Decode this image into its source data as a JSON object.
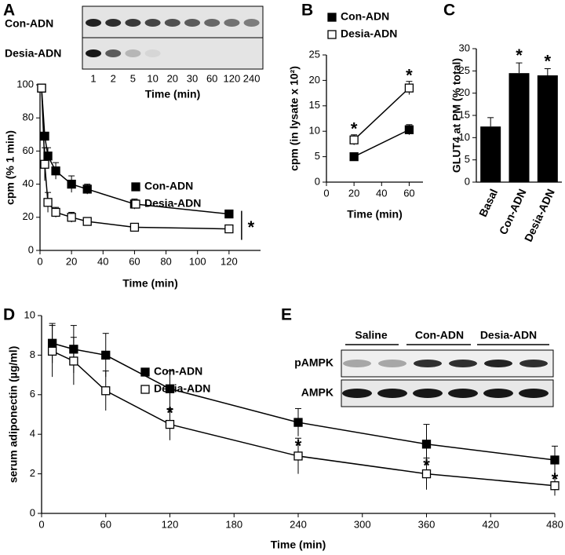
{
  "panels": [
    "A",
    "B",
    "C",
    "D",
    "E"
  ],
  "blot_a": {
    "rows": [
      "Con-ADN",
      "Desia-ADN"
    ],
    "lanes": [
      1,
      2,
      5,
      10,
      20,
      30,
      60,
      120,
      240
    ],
    "xlabel": "Time (min)"
  },
  "blot_e": {
    "groups": [
      "Saline",
      "Con-ADN",
      "Desia-ADN"
    ],
    "rows": [
      "pAMPK",
      "AMPK"
    ]
  },
  "chart_data": [
    {
      "type": "line",
      "xlabel": "Time (min)",
      "ylabel": "cpm (% 1 min)",
      "x": [
        1,
        3,
        5,
        10,
        20,
        30,
        60,
        120
      ],
      "series": [
        {
          "name": "Con-ADN",
          "color": "#000000",
          "marker_fill": "#000000",
          "values": [
            98,
            69,
            57,
            48,
            40,
            37,
            28,
            22
          ],
          "errors": [
            0,
            0,
            5,
            5,
            5,
            3,
            3,
            2
          ]
        },
        {
          "name": "Desia-ADN",
          "color": "#000000",
          "marker_fill": "#ffffff",
          "values": [
            98,
            52,
            29,
            23,
            20,
            17.5,
            14,
            13
          ],
          "errors": [
            0,
            10,
            6,
            3,
            3,
            2,
            1,
            1
          ]
        }
      ],
      "significance_label": "*",
      "significant": [
        false,
        false,
        false,
        false,
        false,
        false,
        false,
        true
      ],
      "xlim": [
        0,
        140
      ],
      "xticks": [
        0,
        20,
        40,
        60,
        80,
        100,
        120
      ],
      "ylim": [
        0,
        100
      ],
      "yticks": [
        0,
        20,
        40,
        60,
        80,
        100
      ]
    },
    {
      "type": "line",
      "xlabel": "Time (min)",
      "ylabel": "cpm (in lysate x 10²)",
      "x": [
        20,
        60
      ],
      "series": [
        {
          "name": "Con-ADN",
          "color": "#000000",
          "marker_fill": "#000000",
          "values": [
            5,
            10.3
          ],
          "errors": [
            0.7,
            1
          ]
        },
        {
          "name": "Desia-ADN",
          "color": "#000000",
          "marker_fill": "#ffffff",
          "values": [
            8.3,
            18.5
          ],
          "errors": [
            1,
            1.3
          ]
        }
      ],
      "significance_label": "*",
      "significant": [
        true,
        true
      ],
      "xlim": [
        0,
        70
      ],
      "xticks": [
        0,
        20,
        40,
        60
      ],
      "ylim": [
        0,
        25
      ],
      "yticks": [
        0,
        5,
        10,
        15,
        20,
        25
      ]
    },
    {
      "type": "bar",
      "ylabel": "GLUT4 at PM (% total)",
      "categories": [
        "Basal",
        "Con-ADN",
        "Desia-ADN"
      ],
      "values": [
        12.5,
        24.5,
        24
      ],
      "errors": [
        2,
        2.3,
        1.5
      ],
      "color": "#000000",
      "significance_label": "*",
      "significant": [
        false,
        true,
        true
      ],
      "ylim": [
        0,
        30
      ],
      "yticks": [
        0,
        5,
        10,
        15,
        20,
        25,
        30
      ]
    },
    {
      "type": "line",
      "xlabel": "Time (min)",
      "ylabel": "serum adiponectin (µg/ml)",
      "x": [
        10,
        30,
        60,
        120,
        240,
        360,
        480
      ],
      "series": [
        {
          "name": "Con-ADN",
          "color": "#000000",
          "marker_fill": "#000000",
          "values": [
            8.6,
            8.3,
            8.0,
            6.3,
            4.6,
            3.5,
            2.7
          ],
          "errors": [
            1,
            1.2,
            1.1,
            0.9,
            0.7,
            1,
            0.7
          ]
        },
        {
          "name": "Desia-ADN",
          "color": "#000000",
          "marker_fill": "#ffffff",
          "values": [
            8.2,
            7.7,
            6.2,
            4.5,
            2.9,
            2.0,
            1.4
          ],
          "errors": [
            1.3,
            1.2,
            1,
            0.8,
            0.9,
            0.8,
            0.5
          ]
        }
      ],
      "significance_label": "*",
      "significant": [
        false,
        false,
        false,
        true,
        true,
        true,
        true
      ],
      "xlim": [
        0,
        480
      ],
      "xticks": [
        0,
        60,
        120,
        180,
        240,
        300,
        360,
        420,
        480
      ],
      "ylim": [
        0,
        10
      ],
      "yticks": [
        0,
        2,
        4,
        6,
        8,
        10
      ]
    }
  ]
}
